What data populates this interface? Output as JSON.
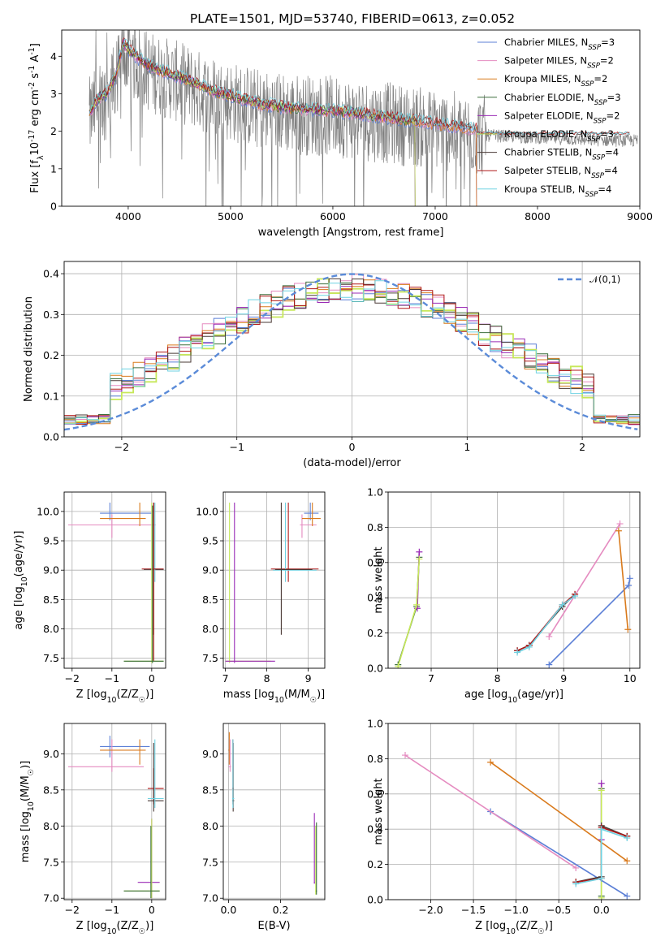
{
  "title": "PLATE=1501, MJD=53740, FIBERID=0613, z=0.052",
  "colors": {
    "Chabrier MILES": "#5b7fd6",
    "Salpeter MILES": "#e58bc0",
    "Kroupa MILES": "#d97a1c",
    "Chabrier ELODIE": "#3c6e3c",
    "Salpeter ELODIE": "#9a2ab5",
    "Kroupa ELODIE": "#c7e85a",
    "Chabrier STELIB": "#4a3a36",
    "Salpeter STELIB": "#b01818",
    "Kroupa STELIB": "#6fd2e2",
    "data": "#808080",
    "gaussian": "#5b8bd8"
  },
  "chart_data": [
    {
      "id": "spectrum",
      "type": "line",
      "xlabel": "wavelength [Angstrom, rest frame]",
      "ylabel": "Flux [f$_\\lambda$10$^{-17}$ erg cm$^{-2}$ s$^{-1}$ A$^{-1}$]",
      "xlim": [
        3350,
        9000
      ],
      "ylim": [
        0,
        4.7
      ],
      "xticks": [
        4000,
        5000,
        6000,
        7000,
        8000,
        9000
      ],
      "yticks": [
        0,
        1,
        2,
        3,
        4
      ],
      "grid": false,
      "legend_position": "top-right",
      "legend": [
        {
          "label": "Chabrier MILES, N",
          "sub": "SSP",
          "suffix": "=3",
          "key": "Chabrier MILES"
        },
        {
          "label": "Salpeter MILES, N",
          "sub": "SSP",
          "suffix": "=2",
          "key": "Salpeter MILES"
        },
        {
          "label": "Kroupa MILES, N",
          "sub": "SSP",
          "suffix": "=2",
          "key": "Kroupa MILES"
        },
        {
          "label": "Chabrier ELODIE, N",
          "sub": "SSP",
          "suffix": "=3",
          "key": "Chabrier ELODIE"
        },
        {
          "label": "Salpeter ELODIE, N",
          "sub": "SSP",
          "suffix": "=2",
          "key": "Salpeter ELODIE"
        },
        {
          "label": "Kroupa ELODIE, N",
          "sub": "SSP",
          "suffix": "=3",
          "key": "Kroupa ELODIE"
        },
        {
          "label": "Chabrier STELIB, N",
          "sub": "SSP",
          "suffix": "=4",
          "key": "Chabrier STELIB"
        },
        {
          "label": "Salpeter STELIB, N",
          "sub": "SSP",
          "suffix": "=4",
          "key": "Salpeter STELIB"
        },
        {
          "label": "Kroupa STELIB, N",
          "sub": "SSP",
          "suffix": "=4",
          "key": "Kroupa STELIB"
        }
      ],
      "data_range": [
        3620,
        8980
      ],
      "model_continuum": {
        "x": [
          3620,
          3700,
          3800,
          3880,
          3950,
          4000,
          4100,
          4200,
          4400,
          4600,
          4800,
          5000,
          5300,
          5600,
          6000,
          6300,
          6600,
          7000,
          7400,
          8000,
          8500,
          8900
        ],
        "y": [
          2.5,
          2.85,
          3.05,
          3.5,
          4.35,
          4.2,
          3.95,
          3.75,
          3.55,
          3.35,
          3.1,
          2.95,
          2.72,
          2.62,
          2.55,
          2.45,
          2.35,
          2.2,
          2.05,
          1.98,
          1.92,
          1.9
        ]
      }
    },
    {
      "id": "residuals",
      "type": "line",
      "xlabel": "(data-model)/error",
      "ylabel": "Normed distribution",
      "xlim": [
        -2.5,
        2.5
      ],
      "ylim": [
        0,
        0.43
      ],
      "xticks": [
        -2,
        -1,
        0,
        1,
        2
      ],
      "yticks": [
        0.0,
        0.1,
        0.2,
        0.3,
        0.4
      ],
      "ytick_labels": [
        "0.0",
        "0.1",
        "0.2",
        "0.3",
        "0.4"
      ],
      "grid": true,
      "legend_position": "top-right",
      "legend_label": "$\\mathcal{N}(0,1)$",
      "gaussian": {
        "mean": 0,
        "sigma": 1
      }
    },
    {
      "id": "age_vs_Z",
      "type": "scatter",
      "xlabel": "Z [log$_{10}$(Z/Z$_\\odot$)]",
      "ylabel": "age  [log$_{10}$(age/yr)]",
      "xlim": [
        -2.2,
        0.35
      ],
      "ylim": [
        7.33,
        10.33
      ],
      "xticks": [
        -2,
        -1,
        0
      ],
      "yticks": [
        7.5,
        8.0,
        8.5,
        9.0,
        9.5,
        10.0
      ],
      "ytick_labels": [
        "7.5",
        "8.0",
        "8.5",
        "9.0",
        "9.5",
        "10.0"
      ],
      "grid": true
    },
    {
      "id": "age_vs_mass",
      "type": "scatter",
      "xlabel": "mass [log$_{10}$(M/M$_\\odot$)]",
      "xlim": [
        6.95,
        9.4
      ],
      "ylim": [
        7.33,
        10.33
      ],
      "xticks": [
        7,
        8,
        9
      ],
      "yticks": [
        7.5,
        8.0,
        8.5,
        9.0,
        9.5,
        10.0
      ],
      "ytick_labels": [
        "7.5",
        "8.0",
        "8.5",
        "9.0",
        "9.5",
        "10.0"
      ],
      "grid": true
    },
    {
      "id": "weight_vs_age",
      "type": "line",
      "xlabel": "age  [log$_{10}$(age/yr)]",
      "ylabel": "mass weight",
      "xlim": [
        6.35,
        10.15
      ],
      "ylim": [
        0,
        1
      ],
      "xticks": [
        7,
        8,
        9,
        10
      ],
      "yticks": [
        0.0,
        0.2,
        0.4,
        0.6,
        0.8,
        1.0
      ],
      "ytick_labels": [
        "0.0",
        "0.2",
        "0.4",
        "0.6",
        "0.8",
        "1.0"
      ],
      "grid": true,
      "series": [
        {
          "key": "Chabrier MILES",
          "x": [
            8.78,
            9.98,
            10.0
          ],
          "y": [
            0.02,
            0.47,
            0.51
          ]
        },
        {
          "key": "Salpeter MILES",
          "x": [
            8.78,
            9.85
          ],
          "y": [
            0.18,
            0.82
          ]
        },
        {
          "key": "Kroupa MILES",
          "x": [
            9.83,
            9.97
          ],
          "y": [
            0.78,
            0.22
          ]
        },
        {
          "key": "Chabrier ELODIE",
          "x": [
            6.5,
            6.78,
            6.82
          ],
          "y": [
            0.02,
            0.35,
            0.63
          ]
        },
        {
          "key": "Salpeter ELODIE",
          "x": [
            6.79,
            6.82
          ],
          "y": [
            0.34,
            0.66
          ]
        },
        {
          "key": "Kroupa ELODIE",
          "x": [
            6.5,
            6.78,
            6.82
          ],
          "y": [
            0.01,
            0.36,
            0.62
          ]
        },
        {
          "key": "Chabrier STELIB",
          "x": [
            8.3,
            8.48,
            8.98,
            9.17
          ],
          "y": [
            0.1,
            0.13,
            0.35,
            0.42
          ]
        },
        {
          "key": "Salpeter STELIB",
          "x": [
            8.3,
            8.48,
            8.98,
            9.17
          ],
          "y": [
            0.1,
            0.13,
            0.36,
            0.42
          ]
        },
        {
          "key": "Kroupa STELIB",
          "x": [
            8.3,
            8.48,
            8.98,
            9.17
          ],
          "y": [
            0.09,
            0.12,
            0.36,
            0.41
          ]
        }
      ]
    },
    {
      "id": "mass_vs_Z",
      "type": "scatter",
      "xlabel": "Z [log$_{10}$(Z/Z$_\\odot$)]",
      "ylabel": "mass [log$_{10}$(M/M$_\\odot$)]",
      "xlim": [
        -2.2,
        0.35
      ],
      "ylim": [
        6.98,
        9.42
      ],
      "xticks": [
        -2,
        -1,
        0
      ],
      "yticks": [
        7.0,
        7.5,
        8.0,
        8.5,
        9.0
      ],
      "ytick_labels": [
        "7.0",
        "7.5",
        "8.0",
        "8.5",
        "9.0"
      ],
      "grid": true
    },
    {
      "id": "mass_vs_EBV",
      "type": "scatter",
      "xlabel": "E(B-V)",
      "xlim": [
        -0.02,
        0.37
      ],
      "ylim": [
        6.98,
        9.42
      ],
      "xticks": [
        0.0,
        0.2
      ],
      "xtick_labels": [
        "0.0",
        "0.2"
      ],
      "yticks": [
        7.0,
        7.5,
        8.0,
        8.5,
        9.0
      ],
      "ytick_labels": [
        "7.0",
        "7.5",
        "8.0",
        "8.5",
        "9.0"
      ],
      "grid": true
    },
    {
      "id": "weight_vs_Z",
      "type": "line",
      "xlabel": "Z [log$_{10}$(Z/Z$_\\odot$)]",
      "ylabel": "mass weight",
      "xlim": [
        -2.5,
        0.45
      ],
      "ylim": [
        0,
        1
      ],
      "xticks": [
        -2.0,
        -1.5,
        -1.0,
        -0.5,
        0.0
      ],
      "xtick_labels": [
        "−2.0",
        "−1.5",
        "−1.0",
        "−0.5",
        "0.0"
      ],
      "yticks": [
        0.0,
        0.2,
        0.4,
        0.6,
        0.8,
        1.0
      ],
      "ytick_labels": [
        "0.0",
        "0.2",
        "0.4",
        "0.6",
        "0.8",
        "1.0"
      ],
      "grid": true,
      "series": [
        {
          "key": "Chabrier MILES",
          "x": [
            -1.3,
            0.3
          ],
          "y": [
            0.5,
            0.02
          ]
        },
        {
          "key": "Salpeter MILES",
          "x": [
            -2.3,
            -0.3
          ],
          "y": [
            0.82,
            0.18
          ]
        },
        {
          "key": "Kroupa MILES",
          "x": [
            -1.3,
            0.3
          ],
          "y": [
            0.78,
            0.22
          ]
        },
        {
          "key": "Chabrier ELODIE",
          "x": [
            0.0,
            0.0
          ],
          "y": [
            0.02,
            0.63
          ]
        },
        {
          "key": "Salpeter ELODIE",
          "x": [
            0.0,
            0.0
          ],
          "y": [
            0.34,
            0.66
          ]
        },
        {
          "key": "Kroupa ELODIE",
          "x": [
            0.0,
            0.0
          ],
          "y": [
            0.01,
            0.62
          ]
        },
        {
          "key": "Chabrier STELIB",
          "x": [
            -0.3,
            0.0,
            0.0,
            0.3
          ],
          "y": [
            0.1,
            0.13,
            0.42,
            0.36
          ]
        },
        {
          "key": "Salpeter STELIB",
          "x": [
            -0.3,
            0.0,
            0.0,
            0.3
          ],
          "y": [
            0.1,
            0.12,
            0.41,
            0.36
          ]
        },
        {
          "key": "Kroupa STELIB",
          "x": [
            -0.3,
            0.0,
            0.0,
            0.3
          ],
          "y": [
            0.09,
            0.12,
            0.4,
            0.35
          ]
        }
      ]
    }
  ]
}
